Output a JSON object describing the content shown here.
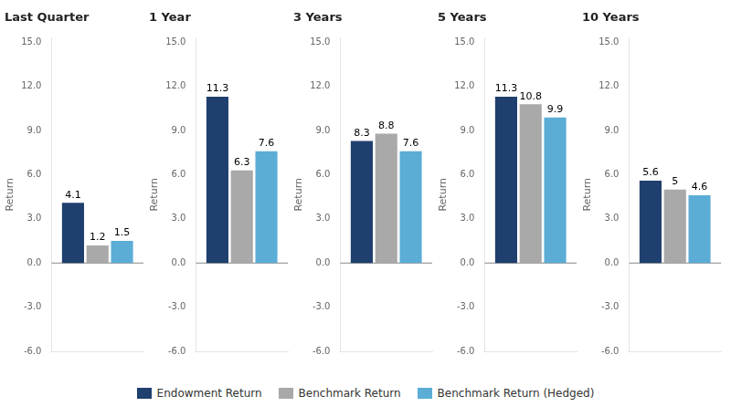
{
  "chart_data": [
    {
      "type": "bar",
      "title": "Last Quarter",
      "categories": [
        null
      ],
      "series": [
        {
          "name": "Endowment Return",
          "color": "#1F3F6E",
          "values": [
            4.1
          ]
        },
        {
          "name": "Benchmark Return",
          "color": "#A9A9A9",
          "values": [
            1.2
          ]
        },
        {
          "name": "Benchmark Return (Hedged)",
          "color": "#5BADD6",
          "values": [
            1.5
          ]
        }
      ],
      "ylabel": "Return",
      "ylim": [
        -6.0,
        15.3
      ],
      "yticks": [
        {
          "value": -6,
          "label": "-6.0"
        },
        {
          "value": -3,
          "label": "-3.0"
        },
        {
          "value": 0,
          "label": "0.0"
        },
        {
          "value": 3,
          "label": "3.0"
        },
        {
          "value": 6,
          "label": "6.0"
        },
        {
          "value": 9,
          "label": "9.0"
        },
        {
          "value": 12,
          "label": "12.0"
        },
        {
          "value": 15,
          "label": "15.0"
        }
      ],
      "grid": false,
      "data_labels": true,
      "legend": "bottom"
    },
    {
      "type": "bar",
      "title": "1 Year",
      "categories": [
        null
      ],
      "series": [
        {
          "name": "Endowment Return",
          "color": "#1F3F6E",
          "values": [
            11.3
          ]
        },
        {
          "name": "Benchmark Return",
          "color": "#A9A9A9",
          "values": [
            6.3
          ]
        },
        {
          "name": "Benchmark Return (Hedged)",
          "color": "#5BADD6",
          "values": [
            7.6
          ]
        }
      ],
      "ylabel": "Return",
      "ylim": [
        -6.0,
        15.3
      ],
      "yticks": [
        {
          "value": -6,
          "label": "-6.0"
        },
        {
          "value": -3,
          "label": "-3.0"
        },
        {
          "value": 0,
          "label": "0.0"
        },
        {
          "value": 3,
          "label": "3.0"
        },
        {
          "value": 6,
          "label": "6.0"
        },
        {
          "value": 9,
          "label": "9.0"
        },
        {
          "value": 12,
          "label": "12.0"
        },
        {
          "value": 15,
          "label": "15.0"
        }
      ],
      "grid": false,
      "data_labels": true,
      "legend": "bottom"
    },
    {
      "type": "bar",
      "title": "3 Years",
      "categories": [
        null
      ],
      "series": [
        {
          "name": "Endowment Return",
          "color": "#1F3F6E",
          "values": [
            8.3
          ]
        },
        {
          "name": "Benchmark Return",
          "color": "#A9A9A9",
          "values": [
            8.8
          ]
        },
        {
          "name": "Benchmark Return (Hedged)",
          "color": "#5BADD6",
          "values": [
            7.6
          ]
        }
      ],
      "ylabel": "Return",
      "ylim": [
        -6.0,
        15.3
      ],
      "yticks": [
        {
          "value": -6,
          "label": "-6.0"
        },
        {
          "value": -3,
          "label": "-3.0"
        },
        {
          "value": 0,
          "label": "0.0"
        },
        {
          "value": 3,
          "label": "3.0"
        },
        {
          "value": 6,
          "label": "6.0"
        },
        {
          "value": 9,
          "label": "9.0"
        },
        {
          "value": 12,
          "label": "12.0"
        },
        {
          "value": 15,
          "label": "15.0"
        }
      ],
      "grid": false,
      "data_labels": true,
      "legend": "bottom"
    },
    {
      "type": "bar",
      "title": "5 Years",
      "categories": [
        null
      ],
      "series": [
        {
          "name": "Endowment Return",
          "color": "#1F3F6E",
          "values": [
            11.3
          ]
        },
        {
          "name": "Benchmark Return",
          "color": "#A9A9A9",
          "values": [
            10.8
          ]
        },
        {
          "name": "Benchmark Return (Hedged)",
          "color": "#5BADD6",
          "values": [
            9.9
          ]
        }
      ],
      "ylabel": "Return",
      "ylim": [
        -6.0,
        15.3
      ],
      "yticks": [
        {
          "value": -6,
          "label": "-6.0"
        },
        {
          "value": -3,
          "label": "-3.0"
        },
        {
          "value": 0,
          "label": "0.0"
        },
        {
          "value": 3,
          "label": "3.0"
        },
        {
          "value": 6,
          "label": "6.0"
        },
        {
          "value": 9,
          "label": "9.0"
        },
        {
          "value": 12,
          "label": "12.0"
        },
        {
          "value": 15,
          "label": "15.0"
        }
      ],
      "grid": false,
      "data_labels": true,
      "legend": "bottom"
    },
    {
      "type": "bar",
      "title": "10 Years",
      "categories": [
        null
      ],
      "series": [
        {
          "name": "Endowment Return",
          "color": "#1F3F6E",
          "values": [
            5.6
          ]
        },
        {
          "name": "Benchmark Return",
          "color": "#A9A9A9",
          "values": [
            5.0
          ]
        },
        {
          "name": "Benchmark Return (Hedged)",
          "color": "#5BADD6",
          "values": [
            4.6
          ]
        }
      ],
      "ylabel": "Return",
      "ylim": [
        -6.0,
        15.3
      ],
      "yticks": [
        {
          "value": -6,
          "label": "-6.0"
        },
        {
          "value": -3,
          "label": "-3.0"
        },
        {
          "value": 0,
          "label": "0.0"
        },
        {
          "value": 3,
          "label": "3.0"
        },
        {
          "value": 6,
          "label": "6.0"
        },
        {
          "value": 9,
          "label": "9.0"
        },
        {
          "value": 12,
          "label": "12.0"
        },
        {
          "value": 15,
          "label": "15.0"
        }
      ],
      "grid": false,
      "data_labels": true,
      "legend": "bottom"
    }
  ]
}
